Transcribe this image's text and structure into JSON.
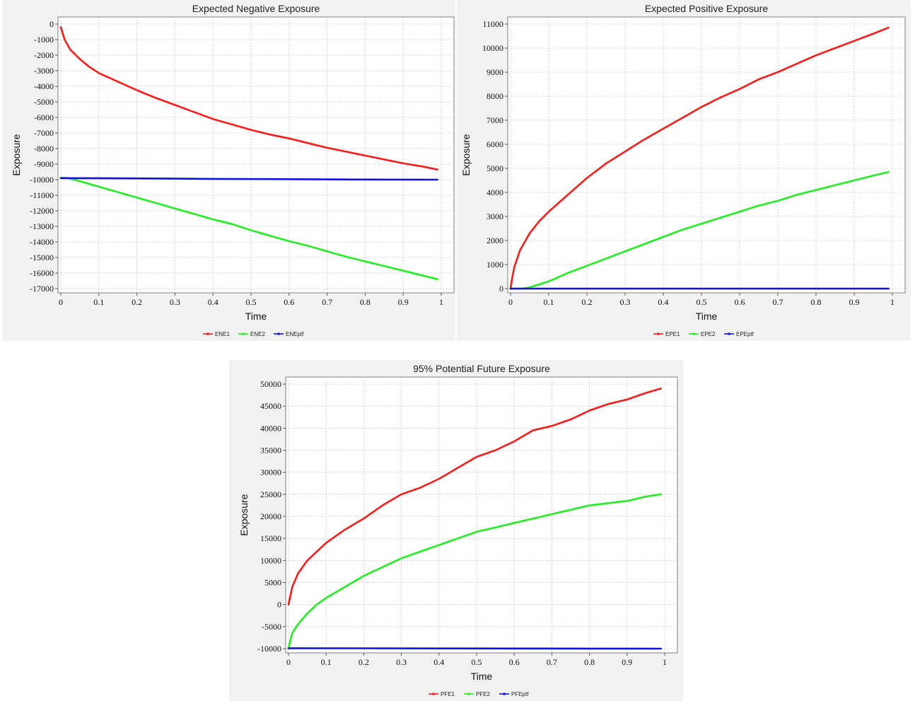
{
  "colors": {
    "series1": "#ff1a1a",
    "series2": "#22ee22",
    "series3": "#1010e0",
    "grid": "#c8c8c8"
  },
  "chart_data": [
    {
      "id": "ene",
      "type": "line",
      "title": "Expected Negative Exposure",
      "xlabel": "Time",
      "ylabel": "Exposure",
      "xlim": [
        0,
        1
      ],
      "ylim": [
        -17200,
        0
      ],
      "xticks": [
        0,
        0.1,
        0.2,
        0.3,
        0.4,
        0.5,
        0.6,
        0.7,
        0.8,
        0.9,
        1
      ],
      "yticks": [
        0,
        -1000,
        -2000,
        -3000,
        -4000,
        -5000,
        -6000,
        -7000,
        -8000,
        -9000,
        -10000,
        -11000,
        -12000,
        -13000,
        -14000,
        -15000,
        -16000,
        -17000
      ],
      "grid": true,
      "legend": "bottom-center",
      "series": [
        {
          "name": "ENE1",
          "color": "#ff1a1a",
          "x": [
            0,
            0.01,
            0.025,
            0.05,
            0.075,
            0.1,
            0.15,
            0.2,
            0.25,
            0.3,
            0.35,
            0.4,
            0.45,
            0.5,
            0.55,
            0.6,
            0.65,
            0.7,
            0.75,
            0.8,
            0.85,
            0.9,
            0.95,
            0.99
          ],
          "y": [
            -200,
            -1000,
            -1650,
            -2250,
            -2750,
            -3150,
            -3700,
            -4250,
            -4750,
            -5200,
            -5650,
            -6100,
            -6450,
            -6800,
            -7100,
            -7350,
            -7650,
            -7950,
            -8200,
            -8450,
            -8700,
            -8950,
            -9150,
            -9350
          ]
        },
        {
          "name": "ENE2",
          "color": "#22ee22",
          "x": [
            0,
            0.02,
            0.05,
            0.1,
            0.15,
            0.2,
            0.25,
            0.3,
            0.35,
            0.4,
            0.45,
            0.5,
            0.55,
            0.6,
            0.65,
            0.7,
            0.75,
            0.8,
            0.85,
            0.9,
            0.95,
            0.99
          ],
          "y": [
            -9880,
            -9900,
            -10100,
            -10450,
            -10800,
            -11150,
            -11500,
            -11850,
            -12200,
            -12550,
            -12850,
            -13250,
            -13600,
            -13950,
            -14250,
            -14600,
            -14950,
            -15250,
            -15550,
            -15850,
            -16150,
            -16400
          ]
        },
        {
          "name": "ENEptf",
          "color": "#1010e0",
          "x": [
            0,
            0.2,
            0.4,
            0.6,
            0.8,
            0.99
          ],
          "y": [
            -9900,
            -9920,
            -9950,
            -9970,
            -9990,
            -10000
          ]
        }
      ]
    },
    {
      "id": "epe",
      "type": "line",
      "title": "Expected Positive Exposure",
      "xlabel": "Time",
      "ylabel": "Exposure",
      "xlim": [
        0,
        1
      ],
      "ylim": [
        0,
        11300
      ],
      "xticks": [
        0,
        0.1,
        0.2,
        0.3,
        0.4,
        0.5,
        0.6,
        0.7,
        0.8,
        0.9,
        1
      ],
      "yticks": [
        0,
        1000,
        2000,
        3000,
        4000,
        5000,
        6000,
        7000,
        8000,
        9000,
        10000,
        11000
      ],
      "grid": true,
      "legend": "bottom-center",
      "series": [
        {
          "name": "EPE1",
          "color": "#ff1a1a",
          "x": [
            0,
            0.005,
            0.01,
            0.025,
            0.05,
            0.075,
            0.1,
            0.15,
            0.2,
            0.25,
            0.3,
            0.35,
            0.4,
            0.45,
            0.5,
            0.55,
            0.6,
            0.65,
            0.7,
            0.75,
            0.8,
            0.85,
            0.9,
            0.95,
            0.99
          ],
          "y": [
            0,
            500,
            900,
            1600,
            2300,
            2800,
            3200,
            3900,
            4600,
            5200,
            5700,
            6200,
            6650,
            7100,
            7550,
            7950,
            8300,
            8700,
            9000,
            9350,
            9700,
            10000,
            10300,
            10600,
            10850
          ]
        },
        {
          "name": "EPE2",
          "color": "#22ee22",
          "x": [
            0,
            0.03,
            0.05,
            0.1,
            0.15,
            0.2,
            0.25,
            0.3,
            0.35,
            0.4,
            0.45,
            0.5,
            0.55,
            0.6,
            0.65,
            0.7,
            0.75,
            0.8,
            0.85,
            0.9,
            0.95,
            0.99
          ],
          "y": [
            0,
            0,
            50,
            300,
            650,
            950,
            1250,
            1550,
            1850,
            2150,
            2450,
            2700,
            2950,
            3200,
            3450,
            3650,
            3900,
            4100,
            4300,
            4500,
            4700,
            4850
          ]
        },
        {
          "name": "EPEptf",
          "color": "#1010e0",
          "x": [
            0,
            0.99
          ],
          "y": [
            0,
            0
          ]
        }
      ]
    },
    {
      "id": "pfe",
      "type": "line",
      "title": "95% Potential Future Exposure",
      "xlabel": "Time",
      "ylabel": "Exposure",
      "xlim": [
        0,
        1
      ],
      "ylim": [
        -12000,
        52000
      ],
      "xticks": [
        0,
        0.1,
        0.2,
        0.3,
        0.4,
        0.5,
        0.6,
        0.7,
        0.8,
        0.9,
        1
      ],
      "yticks": [
        -10000,
        -5000,
        0,
        5000,
        10000,
        15000,
        20000,
        25000,
        30000,
        35000,
        40000,
        45000,
        50000
      ],
      "grid": true,
      "legend": "bottom-center",
      "series": [
        {
          "name": "PFE1",
          "color": "#ff1a1a",
          "x": [
            0,
            0.005,
            0.01,
            0.025,
            0.05,
            0.075,
            0.1,
            0.15,
            0.2,
            0.25,
            0.3,
            0.35,
            0.4,
            0.45,
            0.5,
            0.55,
            0.6,
            0.65,
            0.7,
            0.75,
            0.8,
            0.85,
            0.9,
            0.95,
            0.99
          ],
          "y": [
            0,
            2000,
            4000,
            7000,
            10000,
            12000,
            14000,
            17000,
            19500,
            22500,
            25000,
            26500,
            28500,
            31000,
            33500,
            35000,
            37000,
            39500,
            40500,
            42000,
            44000,
            45500,
            46500,
            48000,
            49000
          ]
        },
        {
          "name": "PFE2",
          "color": "#22ee22",
          "x": [
            0,
            0.005,
            0.01,
            0.025,
            0.05,
            0.075,
            0.1,
            0.15,
            0.2,
            0.25,
            0.3,
            0.35,
            0.4,
            0.45,
            0.5,
            0.55,
            0.6,
            0.65,
            0.7,
            0.75,
            0.8,
            0.85,
            0.9,
            0.95,
            0.99
          ],
          "y": [
            -10000,
            -8000,
            -6500,
            -4500,
            -2000,
            0,
            1500,
            4000,
            6500,
            8500,
            10500,
            12000,
            13500,
            15000,
            16500,
            17500,
            18500,
            19500,
            20500,
            21500,
            22500,
            23000,
            23500,
            24500,
            25000
          ]
        },
        {
          "name": "PFEptf",
          "color": "#1010e0",
          "x": [
            0,
            0.2,
            0.4,
            0.6,
            0.8,
            0.99
          ],
          "y": [
            -9900,
            -9920,
            -9950,
            -9970,
            -9990,
            -10000
          ]
        }
      ]
    }
  ]
}
